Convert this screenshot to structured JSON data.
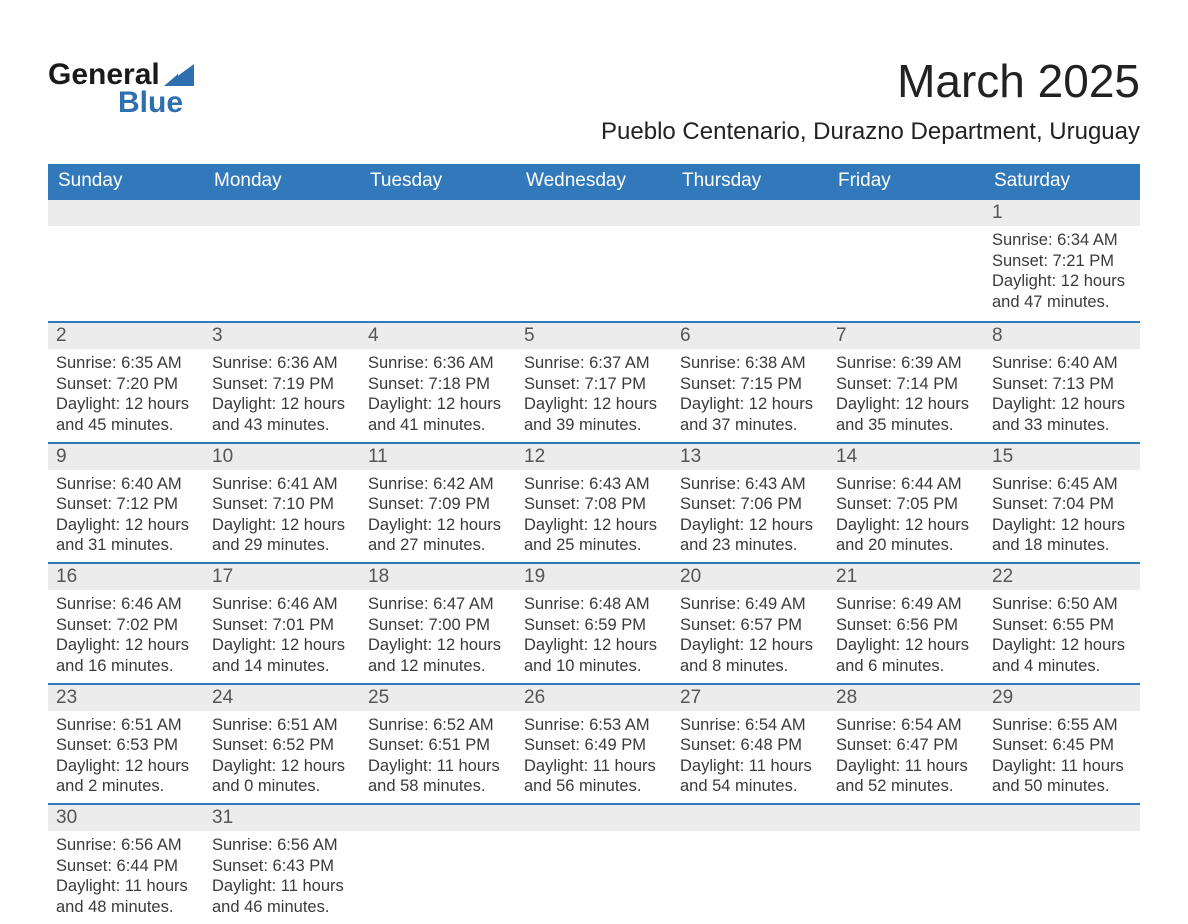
{
  "logo": {
    "text1": "General",
    "text2": "Blue",
    "tri_color": "#2f6fb0"
  },
  "title": "March 2025",
  "location": "Pueblo Centenario, Durazno Department, Uruguay",
  "colors": {
    "header_bg": "#3279bb",
    "header_fg": "#ffffff",
    "daynum_bg": "#ececec",
    "row_border": "#3279bb",
    "text": "#3a3a3a"
  },
  "typography": {
    "month_title_fontsize": 46,
    "location_fontsize": 24,
    "dayheader_fontsize": 19,
    "daynum_fontsize": 19,
    "detail_fontsize": 16.5,
    "font_family": "Arial"
  },
  "day_headers": [
    "Sunday",
    "Monday",
    "Tuesday",
    "Wednesday",
    "Thursday",
    "Friday",
    "Saturday"
  ],
  "weeks": [
    [
      null,
      null,
      null,
      null,
      null,
      null,
      {
        "n": "1",
        "sr": "Sunrise: 6:34 AM",
        "ss": "Sunset: 7:21 PM",
        "d1": "Daylight: 12 hours",
        "d2": "and 47 minutes."
      }
    ],
    [
      {
        "n": "2",
        "sr": "Sunrise: 6:35 AM",
        "ss": "Sunset: 7:20 PM",
        "d1": "Daylight: 12 hours",
        "d2": "and 45 minutes."
      },
      {
        "n": "3",
        "sr": "Sunrise: 6:36 AM",
        "ss": "Sunset: 7:19 PM",
        "d1": "Daylight: 12 hours",
        "d2": "and 43 minutes."
      },
      {
        "n": "4",
        "sr": "Sunrise: 6:36 AM",
        "ss": "Sunset: 7:18 PM",
        "d1": "Daylight: 12 hours",
        "d2": "and 41 minutes."
      },
      {
        "n": "5",
        "sr": "Sunrise: 6:37 AM",
        "ss": "Sunset: 7:17 PM",
        "d1": "Daylight: 12 hours",
        "d2": "and 39 minutes."
      },
      {
        "n": "6",
        "sr": "Sunrise: 6:38 AM",
        "ss": "Sunset: 7:15 PM",
        "d1": "Daylight: 12 hours",
        "d2": "and 37 minutes."
      },
      {
        "n": "7",
        "sr": "Sunrise: 6:39 AM",
        "ss": "Sunset: 7:14 PM",
        "d1": "Daylight: 12 hours",
        "d2": "and 35 minutes."
      },
      {
        "n": "8",
        "sr": "Sunrise: 6:40 AM",
        "ss": "Sunset: 7:13 PM",
        "d1": "Daylight: 12 hours",
        "d2": "and 33 minutes."
      }
    ],
    [
      {
        "n": "9",
        "sr": "Sunrise: 6:40 AM",
        "ss": "Sunset: 7:12 PM",
        "d1": "Daylight: 12 hours",
        "d2": "and 31 minutes."
      },
      {
        "n": "10",
        "sr": "Sunrise: 6:41 AM",
        "ss": "Sunset: 7:10 PM",
        "d1": "Daylight: 12 hours",
        "d2": "and 29 minutes."
      },
      {
        "n": "11",
        "sr": "Sunrise: 6:42 AM",
        "ss": "Sunset: 7:09 PM",
        "d1": "Daylight: 12 hours",
        "d2": "and 27 minutes."
      },
      {
        "n": "12",
        "sr": "Sunrise: 6:43 AM",
        "ss": "Sunset: 7:08 PM",
        "d1": "Daylight: 12 hours",
        "d2": "and 25 minutes."
      },
      {
        "n": "13",
        "sr": "Sunrise: 6:43 AM",
        "ss": "Sunset: 7:06 PM",
        "d1": "Daylight: 12 hours",
        "d2": "and 23 minutes."
      },
      {
        "n": "14",
        "sr": "Sunrise: 6:44 AM",
        "ss": "Sunset: 7:05 PM",
        "d1": "Daylight: 12 hours",
        "d2": "and 20 minutes."
      },
      {
        "n": "15",
        "sr": "Sunrise: 6:45 AM",
        "ss": "Sunset: 7:04 PM",
        "d1": "Daylight: 12 hours",
        "d2": "and 18 minutes."
      }
    ],
    [
      {
        "n": "16",
        "sr": "Sunrise: 6:46 AM",
        "ss": "Sunset: 7:02 PM",
        "d1": "Daylight: 12 hours",
        "d2": "and 16 minutes."
      },
      {
        "n": "17",
        "sr": "Sunrise: 6:46 AM",
        "ss": "Sunset: 7:01 PM",
        "d1": "Daylight: 12 hours",
        "d2": "and 14 minutes."
      },
      {
        "n": "18",
        "sr": "Sunrise: 6:47 AM",
        "ss": "Sunset: 7:00 PM",
        "d1": "Daylight: 12 hours",
        "d2": "and 12 minutes."
      },
      {
        "n": "19",
        "sr": "Sunrise: 6:48 AM",
        "ss": "Sunset: 6:59 PM",
        "d1": "Daylight: 12 hours",
        "d2": "and 10 minutes."
      },
      {
        "n": "20",
        "sr": "Sunrise: 6:49 AM",
        "ss": "Sunset: 6:57 PM",
        "d1": "Daylight: 12 hours",
        "d2": "and 8 minutes."
      },
      {
        "n": "21",
        "sr": "Sunrise: 6:49 AM",
        "ss": "Sunset: 6:56 PM",
        "d1": "Daylight: 12 hours",
        "d2": "and 6 minutes."
      },
      {
        "n": "22",
        "sr": "Sunrise: 6:50 AM",
        "ss": "Sunset: 6:55 PM",
        "d1": "Daylight: 12 hours",
        "d2": "and 4 minutes."
      }
    ],
    [
      {
        "n": "23",
        "sr": "Sunrise: 6:51 AM",
        "ss": "Sunset: 6:53 PM",
        "d1": "Daylight: 12 hours",
        "d2": "and 2 minutes."
      },
      {
        "n": "24",
        "sr": "Sunrise: 6:51 AM",
        "ss": "Sunset: 6:52 PM",
        "d1": "Daylight: 12 hours",
        "d2": "and 0 minutes."
      },
      {
        "n": "25",
        "sr": "Sunrise: 6:52 AM",
        "ss": "Sunset: 6:51 PM",
        "d1": "Daylight: 11 hours",
        "d2": "and 58 minutes."
      },
      {
        "n": "26",
        "sr": "Sunrise: 6:53 AM",
        "ss": "Sunset: 6:49 PM",
        "d1": "Daylight: 11 hours",
        "d2": "and 56 minutes."
      },
      {
        "n": "27",
        "sr": "Sunrise: 6:54 AM",
        "ss": "Sunset: 6:48 PM",
        "d1": "Daylight: 11 hours",
        "d2": "and 54 minutes."
      },
      {
        "n": "28",
        "sr": "Sunrise: 6:54 AM",
        "ss": "Sunset: 6:47 PM",
        "d1": "Daylight: 11 hours",
        "d2": "and 52 minutes."
      },
      {
        "n": "29",
        "sr": "Sunrise: 6:55 AM",
        "ss": "Sunset: 6:45 PM",
        "d1": "Daylight: 11 hours",
        "d2": "and 50 minutes."
      }
    ],
    [
      {
        "n": "30",
        "sr": "Sunrise: 6:56 AM",
        "ss": "Sunset: 6:44 PM",
        "d1": "Daylight: 11 hours",
        "d2": "and 48 minutes."
      },
      {
        "n": "31",
        "sr": "Sunrise: 6:56 AM",
        "ss": "Sunset: 6:43 PM",
        "d1": "Daylight: 11 hours",
        "d2": "and 46 minutes."
      },
      null,
      null,
      null,
      null,
      null
    ]
  ]
}
